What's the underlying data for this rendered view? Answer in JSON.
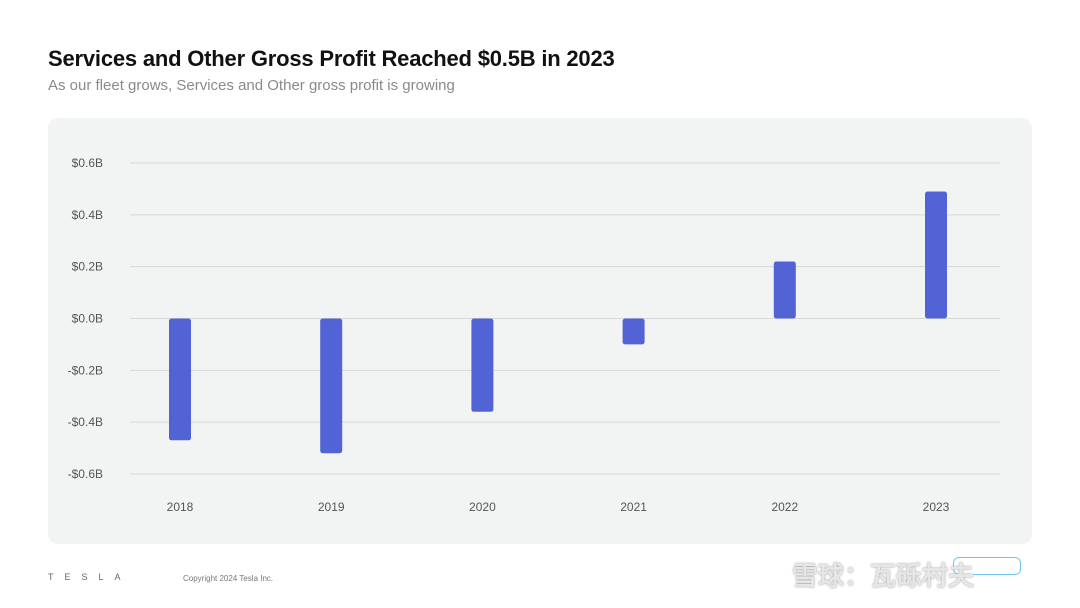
{
  "header": {
    "title": "Services and Other Gross Profit Reached $0.5B in 2023",
    "subtitle": "As our fleet grows, Services and Other gross profit is growing"
  },
  "footer": {
    "logo": "TESLA",
    "copyright": "Copyright 2024 Tesla Inc."
  },
  "watermark": {
    "text": "雪球：瓦砾村夫"
  },
  "colors": {
    "bar": "#5263d6",
    "grid": "#d6d9d8",
    "panel": "#f2f4f3"
  },
  "chart_data": {
    "type": "bar",
    "title": "Services and Other Gross Profit Reached $0.5B in 2023",
    "subtitle": "As our fleet grows, Services and Other gross profit is growing",
    "categories": [
      "2018",
      "2019",
      "2020",
      "2021",
      "2022",
      "2023"
    ],
    "values": [
      -0.47,
      -0.52,
      -0.36,
      -0.1,
      0.22,
      0.49
    ],
    "ylim": [
      -0.6,
      0.6
    ],
    "yticks": [
      0.6,
      0.4,
      0.2,
      0.0,
      -0.2,
      -0.4,
      -0.6
    ],
    "ytick_labels": [
      "$0.6B",
      "$0.4B",
      "$0.2B",
      "$0.0B",
      "-$0.2B",
      "-$0.4B",
      "-$0.6B"
    ],
    "xlabel": "",
    "ylabel": "",
    "grid": true,
    "legend": "none"
  }
}
